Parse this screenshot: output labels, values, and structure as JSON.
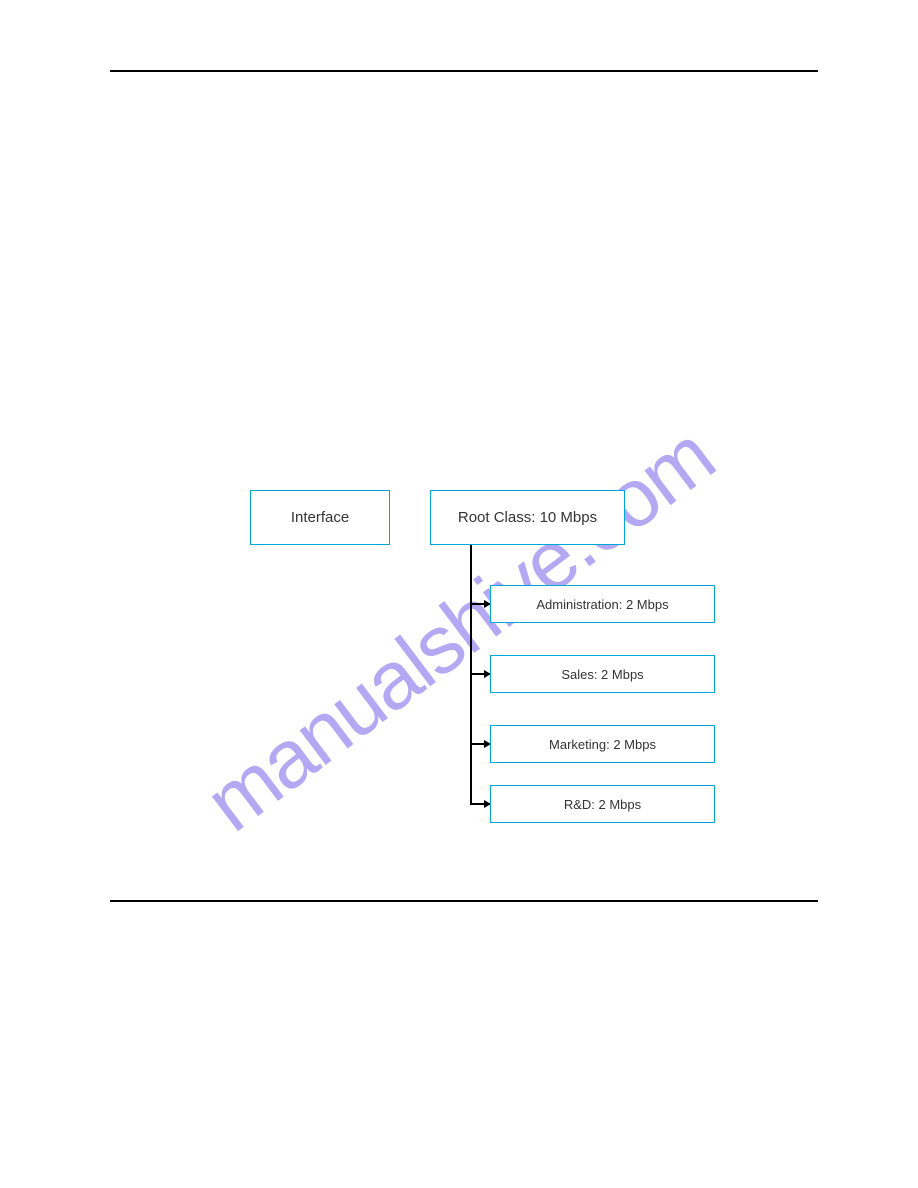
{
  "diagram": {
    "type": "tree",
    "border_color": "#00a6d6",
    "text_color": "#333333",
    "interface_box": {
      "label": "Interface",
      "fontsize": 15
    },
    "root_box": {
      "label": "Root Class: 10 Mbps",
      "fontsize": 15
    },
    "children": [
      {
        "label": "Administration: 2 Mbps",
        "fontsize": 13
      },
      {
        "label": "Sales: 2 Mbps",
        "fontsize": 13
      },
      {
        "label": "Marketing: 2 Mbps",
        "fontsize": 13
      },
      {
        "label": "R&D: 2 Mbps",
        "fontsize": 13
      }
    ],
    "connector_color": "#000000"
  },
  "watermark": {
    "text": "manualshive.com",
    "color": "#9b8cf0",
    "opacity": 0.75
  },
  "page": {
    "background_color": "#ffffff",
    "border_color": "#000000"
  }
}
